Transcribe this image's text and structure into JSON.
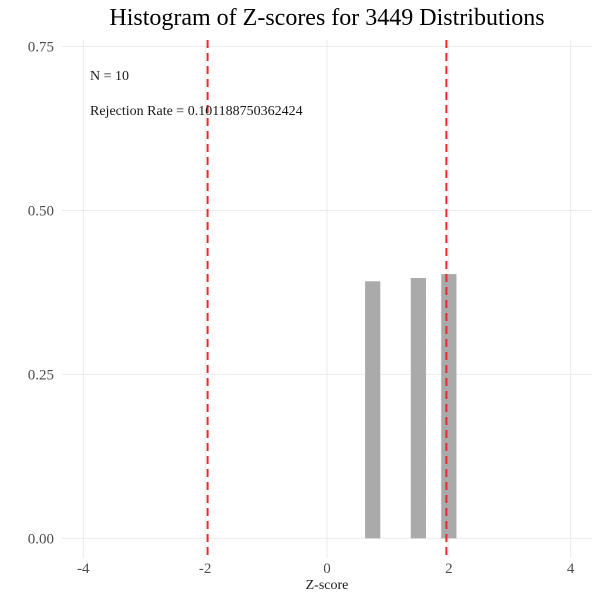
{
  "chart_data": {
    "type": "bar",
    "title": "Histogram of Z-scores for 3449 Distributions",
    "xlabel": "Z-score",
    "ylabel": "",
    "xlim": [
      -4.35,
      4.35
    ],
    "ylim": [
      -0.03,
      0.76
    ],
    "x_ticks": [
      -4,
      -2,
      0,
      2,
      4
    ],
    "x_tick_labels": [
      "-4",
      "-2",
      "0",
      "2",
      "4"
    ],
    "y_ticks": [
      0,
      0.25,
      0.5,
      0.75
    ],
    "y_tick_labels": [
      "0.00",
      "0.25",
      "0.50",
      "0.75"
    ],
    "bin_width": 0.25,
    "bars": [
      {
        "x": 0.75,
        "value": 0.392
      },
      {
        "x": 1.5,
        "value": 0.397
      },
      {
        "x": 2.0,
        "value": 0.403
      }
    ],
    "reference_lines": [
      {
        "x": -1.96,
        "style": "dashed"
      },
      {
        "x": 1.96,
        "style": "dashed"
      }
    ],
    "annotations": [
      {
        "text": "N = 10"
      },
      {
        "text": "Rejection Rate = 0.101188750362424"
      }
    ],
    "grid": true,
    "colors": {
      "bar": "#aaaaaa",
      "reference_line": "#e8292e",
      "grid": "#ebebeb"
    }
  }
}
